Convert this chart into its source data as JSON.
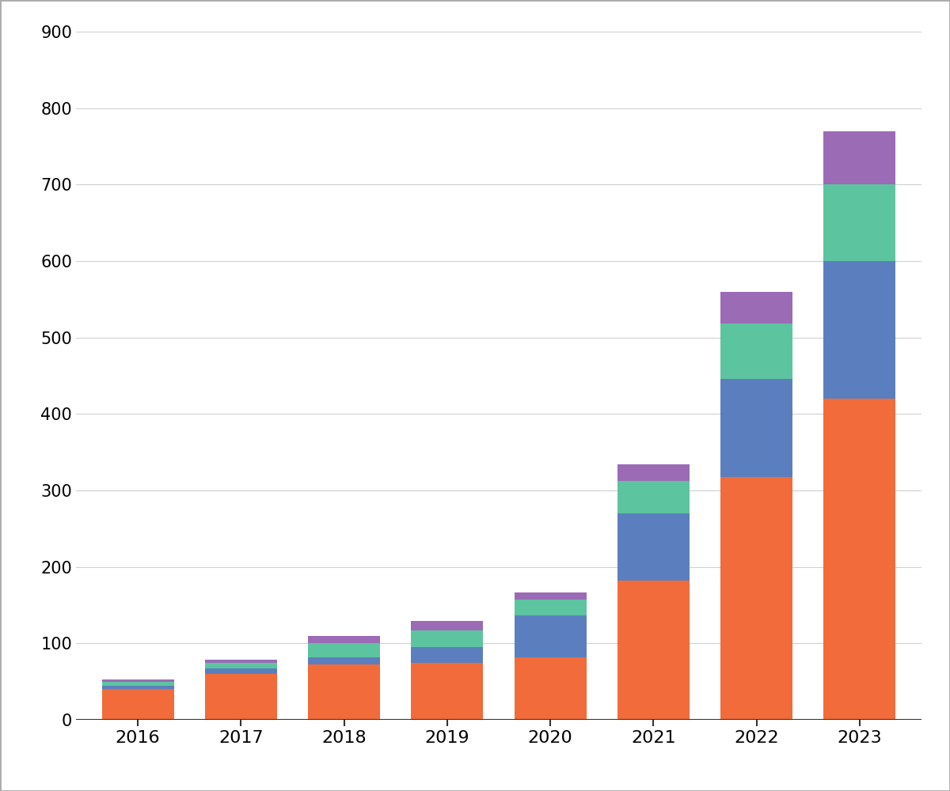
{
  "years": [
    "2016",
    "2017",
    "2018",
    "2019",
    "2020",
    "2021",
    "2022",
    "2023"
  ],
  "segments": {
    "orange": [
      40,
      60,
      72,
      75,
      82,
      182,
      318,
      420
    ],
    "blue": [
      5,
      7,
      10,
      20,
      55,
      88,
      128,
      180
    ],
    "green": [
      5,
      7,
      18,
      22,
      20,
      42,
      72,
      100
    ],
    "purple": [
      3,
      5,
      10,
      12,
      10,
      22,
      42,
      70
    ]
  },
  "colors": {
    "orange": "#F26B3A",
    "blue": "#5B7FBE",
    "green": "#5DC4A0",
    "purple": "#9B6BB5"
  },
  "ylim": [
    0,
    900
  ],
  "yticks": [
    0,
    100,
    200,
    300,
    400,
    500,
    600,
    700,
    800,
    900
  ],
  "background_color": "#FFFFFF",
  "grid_color": "#D0D0D0",
  "bar_width": 0.7
}
